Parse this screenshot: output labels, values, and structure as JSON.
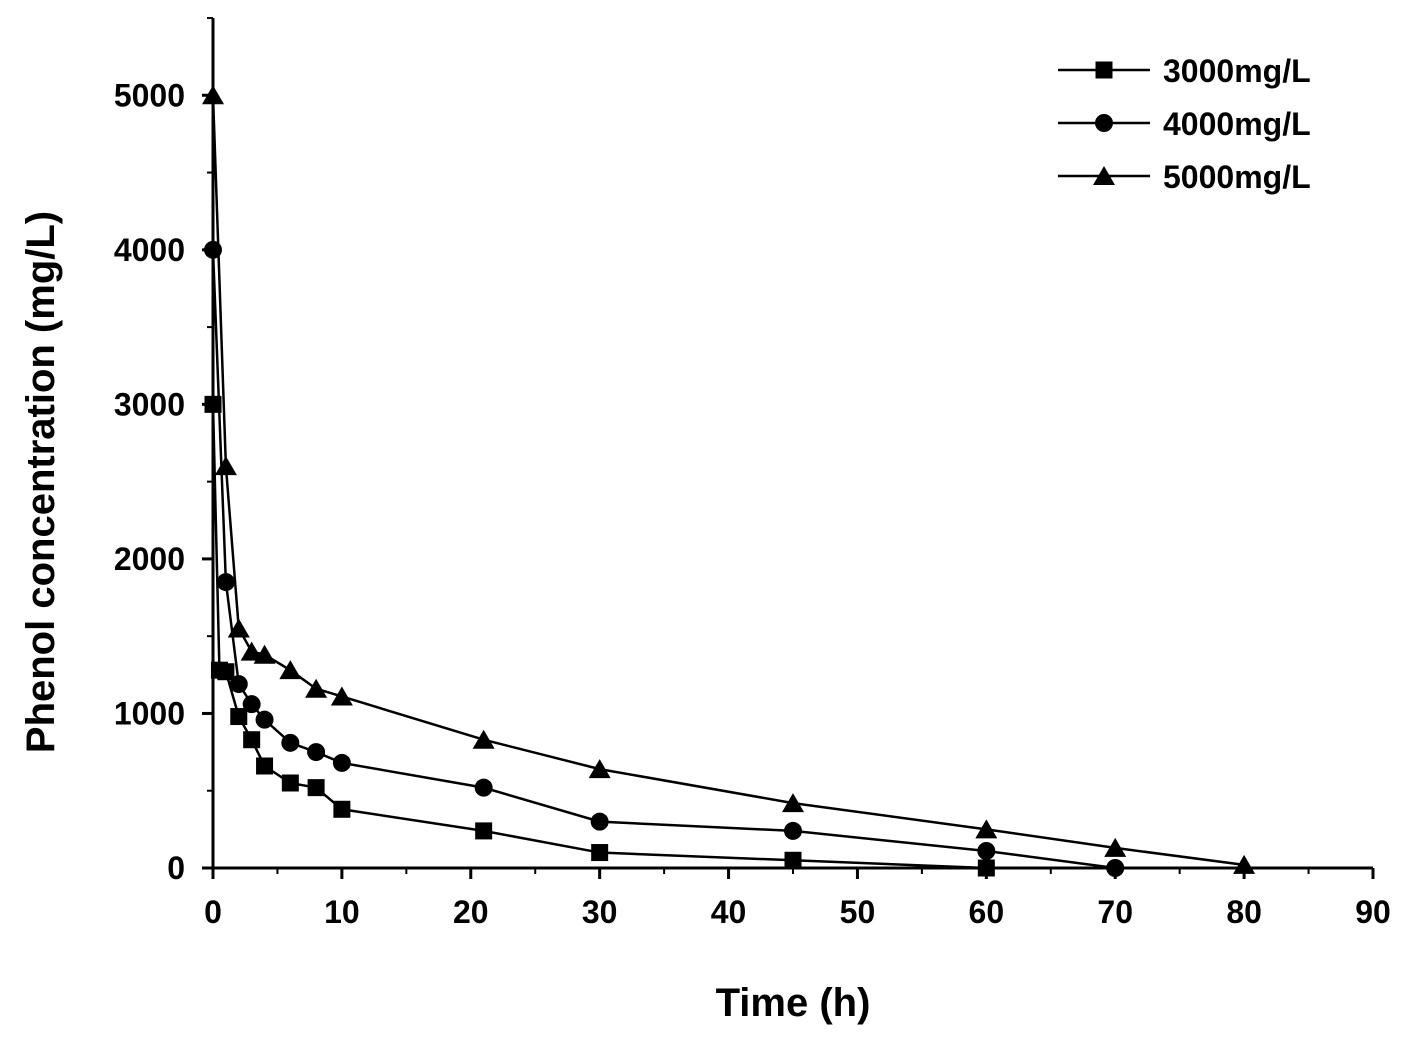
{
  "chart_data": {
    "type": "line",
    "xlabel": "Time (h)",
    "ylabel": "Phenol concentration (mg/L)",
    "xlim": [
      0,
      90
    ],
    "ylim": [
      0,
      5500
    ],
    "xticks": [
      0,
      10,
      20,
      30,
      40,
      50,
      60,
      70,
      80,
      90
    ],
    "yticks": [
      0,
      1000,
      2000,
      3000,
      4000,
      5000
    ],
    "grid": false,
    "legend_position": "top-right",
    "color": "#000000",
    "series": [
      {
        "name": "3000mg/L",
        "marker": "square",
        "x": [
          0,
          0.5,
          1,
          2,
          3,
          4,
          6,
          8,
          10,
          21,
          30,
          45,
          60
        ],
        "y": [
          3000,
          1280,
          1270,
          980,
          830,
          660,
          550,
          520,
          380,
          240,
          100,
          50,
          0
        ]
      },
      {
        "name": "4000mg/L",
        "marker": "circle",
        "x": [
          0,
          1,
          2,
          3,
          4,
          6,
          8,
          10,
          21,
          30,
          45,
          60,
          70
        ],
        "y": [
          4000,
          1850,
          1190,
          1060,
          960,
          810,
          750,
          680,
          520,
          300,
          240,
          110,
          0
        ]
      },
      {
        "name": "5000mg/L",
        "marker": "triangle",
        "x": [
          0,
          1,
          2,
          3,
          4,
          6,
          8,
          10,
          21,
          30,
          45,
          60,
          70,
          80
        ],
        "y": [
          5000,
          2600,
          1550,
          1400,
          1380,
          1280,
          1160,
          1110,
          830,
          640,
          420,
          250,
          130,
          20
        ]
      }
    ]
  }
}
